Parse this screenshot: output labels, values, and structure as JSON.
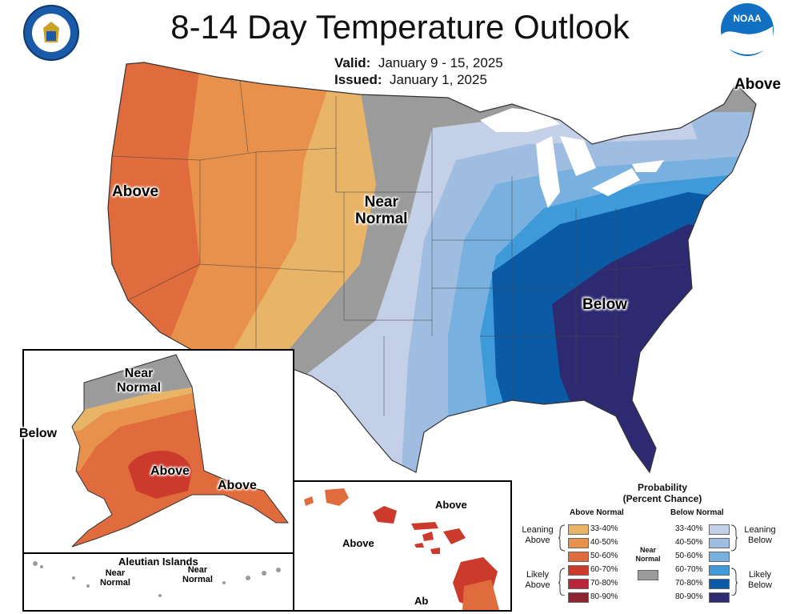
{
  "title": "8-14 Day Temperature Outlook",
  "valid_label": "Valid:",
  "valid_value": "January 9 - 15, 2025",
  "issued_label": "Issued:",
  "issued_value": "January 1, 2025",
  "map_labels": {
    "west_above": "Above",
    "near_normal_line1": "Near",
    "near_normal_line2": "Normal",
    "southeast_below": "Below",
    "maine_above": "Above"
  },
  "alaska_labels": {
    "near_line1": "Near",
    "near_line2": "Normal",
    "below": "Below",
    "above_center": "Above",
    "above_southeast": "Above"
  },
  "aleutian": {
    "title": "Aleutian Islands",
    "near1_line1": "Near",
    "near1_line2": "Normal",
    "near2_line1": "Near",
    "near2_line2": "Normal"
  },
  "hawaii_labels": {
    "above_north": "Above",
    "above_west": "Above",
    "above_south_partial": "Ab"
  },
  "legend": {
    "header_line1": "Probability",
    "header_line2": "(Percent Chance)",
    "above_header": "Above Normal",
    "below_header": "Below Normal",
    "leaning_above_1": "Leaning",
    "leaning_above_2": "Above",
    "likely_above_1": "Likely",
    "likely_above_2": "Above",
    "leaning_below_1": "Leaning",
    "leaning_below_2": "Below",
    "likely_below_1": "Likely",
    "likely_below_2": "Below",
    "near_normal_1": "Near",
    "near_normal_2": "Normal",
    "above_ranges": [
      "33-40%",
      "40-50%",
      "50-60%",
      "60-70%",
      "70-80%",
      "80-90%"
    ],
    "below_ranges": [
      "33-40%",
      "40-50%",
      "50-60%",
      "60-70%",
      "70-80%",
      "80-90%"
    ],
    "above_colors": [
      "#e8b468",
      "#e8914c",
      "#e06b3c",
      "#cc3a2c",
      "#b8243a",
      "#8c2530"
    ],
    "below_colors": [
      "#c4cfe8",
      "#9fbde0",
      "#78b0e0",
      "#3f9ad9",
      "#0b5aa6",
      "#2e2a72"
    ],
    "near_color": "#9b9b9b"
  }
}
